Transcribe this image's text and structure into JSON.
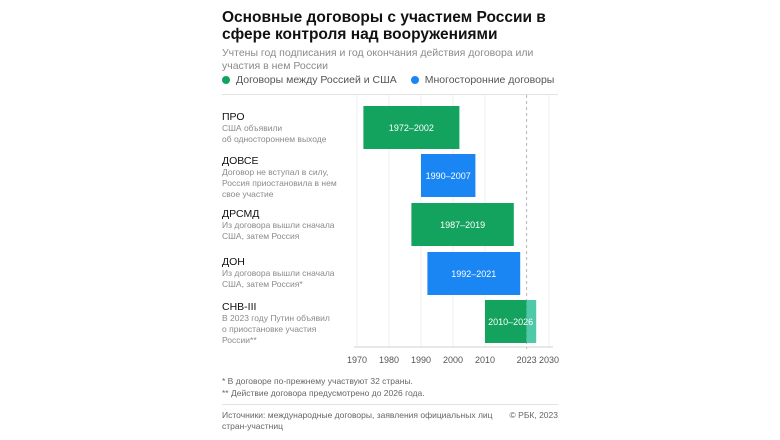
{
  "title": "Основные договоры с участием России в сфере контроля над вооружениями",
  "subtitle": "Учтены год подписания и год окончания действия договора или участия в нем России",
  "colors": {
    "bilateral": "#13a35f",
    "multilateral": "#1a86f4",
    "extension": "#4fc9a9",
    "axis": "#d0d0d0",
    "text_muted": "#8a8a8a"
  },
  "legend": [
    {
      "label": "Договоры между Россией и США",
      "color": "#13a35f"
    },
    {
      "label": "Многосторонние договоры",
      "color": "#1a86f4"
    }
  ],
  "treaties": [
    {
      "name": "ПРО",
      "note": "США объявили\nоб одностороннем выходе"
    },
    {
      "name": "ДОВСЕ",
      "note": "Договор не вступал в силу,\nРоссия приостановила в нем\nсвое участие"
    },
    {
      "name": "ДРСМД",
      "note": "Из договора вышли сначала\nСША, затем Россия"
    },
    {
      "name": "ДОН",
      "note": "Из договора вышли сначала\nСША, затем Россия*"
    },
    {
      "name": "СНВ-III",
      "note": "В 2023 году Путин объявил\nо приостановке участия\nРоссии**"
    }
  ],
  "chart_data": {
    "type": "bar",
    "orientation": "horizontal-range",
    "xlim": [
      1970,
      2030
    ],
    "xticks": [
      1970,
      1980,
      1990,
      2000,
      2010,
      2023,
      2030
    ],
    "reference_line": 2023,
    "categories": [
      "ПРО",
      "ДОВСЕ",
      "ДРСМД",
      "ДОН",
      "СНВ-III"
    ],
    "bars": [
      {
        "category": "ПРО",
        "start": 1972,
        "end": 2002,
        "label": "1972–2002",
        "type": "bilateral"
      },
      {
        "category": "ДОВСЕ",
        "start": 1990,
        "end": 2007,
        "label": "1990–2007",
        "type": "multilateral"
      },
      {
        "category": "ДРСМД",
        "start": 1987,
        "end": 2019,
        "label": "1987–2019",
        "type": "bilateral"
      },
      {
        "category": "ДОН",
        "start": 1992,
        "end": 2021,
        "label": "1992–2021",
        "type": "multilateral"
      },
      {
        "category": "СНВ-III",
        "start": 2010,
        "end": 2026,
        "split": 2023,
        "label": "2010–2026",
        "type": "bilateral"
      }
    ]
  },
  "footnotes": [
    "* В договоре по-прежнему участвуют 32 страны.",
    "** Действие договора предусмотрено до 2026 года."
  ],
  "sources": "Источники: международные договоры, заявления официальных лиц стран-участниц",
  "copyright": "© РБК, 2023"
}
